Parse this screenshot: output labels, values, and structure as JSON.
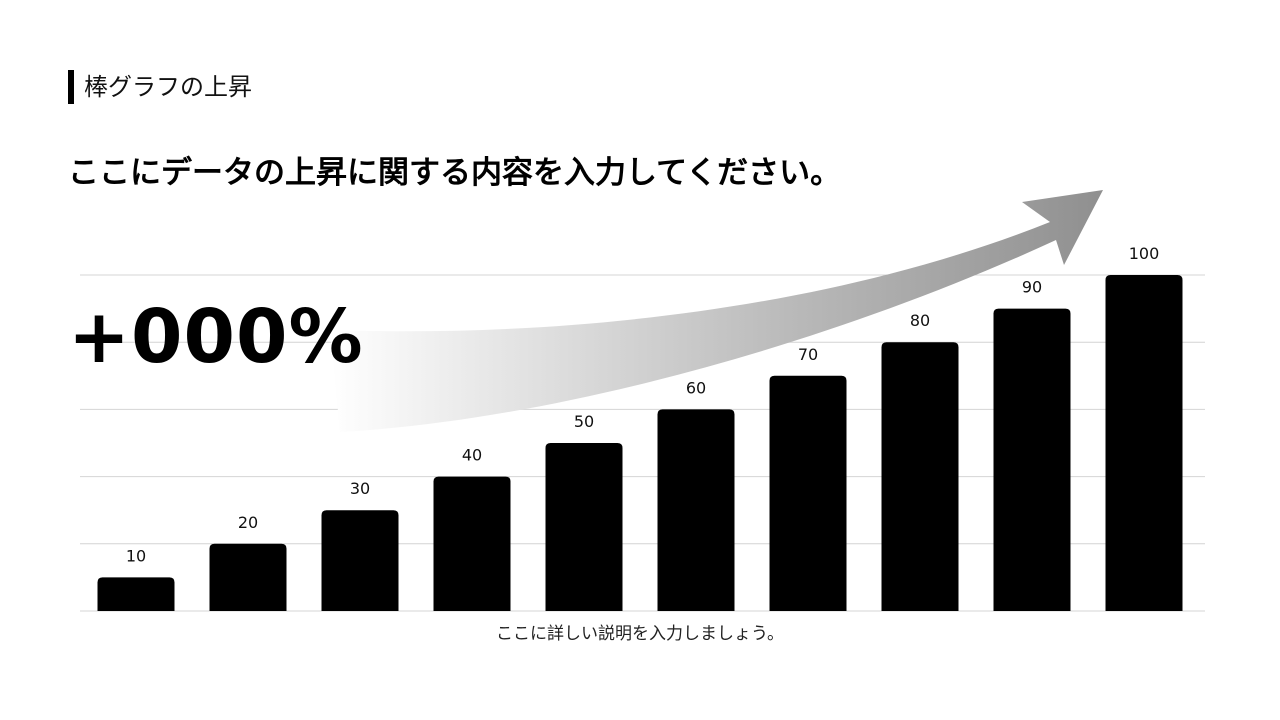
{
  "header": {
    "section_title": "棒グラフの上昇",
    "headline": "ここにデータの上昇に関する内容を入力してください。"
  },
  "stat": {
    "value": "+000%"
  },
  "caption": "ここに詳しい説明を入力しましょう。",
  "colors": {
    "bar": "#000000",
    "grid": "#d4d4d4",
    "arrow_head": "#8f8f8f"
  },
  "chart_data": {
    "type": "bar",
    "categories": [
      "",
      "",
      "",
      "",
      "",
      "",
      "",
      "",
      "",
      ""
    ],
    "values": [
      10,
      20,
      30,
      40,
      50,
      60,
      70,
      80,
      90,
      100
    ],
    "data_labels": [
      "10",
      "20",
      "30",
      "40",
      "50",
      "60",
      "70",
      "80",
      "90",
      "100"
    ],
    "title": "",
    "xlabel": "",
    "ylabel": "",
    "ylim": [
      0,
      100
    ],
    "grid": true,
    "legend": "none",
    "annotation": "rising arrow"
  }
}
